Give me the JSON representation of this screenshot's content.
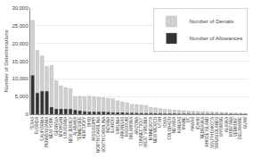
{
  "chart_data": {
    "type": "bar",
    "categories": [
      "TEXAS",
      "FLORIDA",
      "CALIFORNIA",
      "PENNSYLVANIA",
      "NEW YORK",
      "GEORGIA",
      "MICHIGAN",
      "LOUISIANA",
      "NEW JERSEY",
      "ALABAMA",
      "TENNESSEE",
      "KENTUCKY",
      "OHIO",
      "MISSISSIPPI",
      "NORTH CAROLINA",
      "SOUTH CAROLINA",
      "INDIANA",
      "ILLINOIS",
      "VIRGINIA",
      "ARKANSAS",
      "MISSOURI",
      "OKLAHOMA",
      "ARIZONA",
      "CONNECTICUT",
      "WEST VIRGINIA",
      "MINNESOTA",
      "NEW MEXICO",
      "UTAH",
      "IOWA",
      "COLORADO",
      "NEVADA",
      "KANSAS",
      "MAINE",
      "DC",
      "HAWAII",
      "IDAHO",
      "NEBRASKA",
      "RHODE ISLAND",
      "SOUTH DAKOTA",
      "VIRGIN ISLANDS",
      "WYOMING",
      "ALASKA",
      "MONTANA",
      "VERMONT",
      "DELAWARE",
      "GUAM"
    ],
    "series": [
      {
        "name": "Number of Denials",
        "color": "#d0d0d0",
        "values": [
          26500,
          18000,
          16500,
          13500,
          13800,
          9500,
          8000,
          7500,
          7200,
          5000,
          5100,
          5000,
          5100,
          4900,
          4800,
          4700,
          4500,
          4400,
          3800,
          3500,
          3200,
          2800,
          2700,
          2600,
          2500,
          2000,
          1800,
          1600,
          1400,
          1300,
          1200,
          1100,
          1000,
          900,
          850,
          800,
          750,
          700,
          650,
          600,
          500,
          450,
          400,
          350,
          300,
          250
        ]
      },
      {
        "name": "Number of Allowances",
        "color": "#333333",
        "values": [
          11000,
          6000,
          6500,
          6500,
          2000,
          1500,
          1500,
          1500,
          1500,
          1200,
          1000,
          800,
          700,
          700,
          700,
          700,
          600,
          500,
          500,
          500,
          400,
          400,
          350,
          300,
          300,
          300,
          250,
          250,
          200,
          200,
          200,
          150,
          150,
          150,
          100,
          100,
          100,
          100,
          100,
          80,
          80,
          80,
          60,
          60,
          50,
          40
        ]
      }
    ],
    "ylabel": "Number of Determinations",
    "ylim": [
      0,
      30000
    ],
    "yticks": [
      0,
      {
        "value": 5000,
        "label": "5,000"
      },
      {
        "value": 10000,
        "label": "10,000"
      },
      {
        "value": 15000,
        "label": "15,000"
      },
      {
        "value": 20000,
        "label": "20,000"
      },
      {
        "value": 25000,
        "label": "25,000"
      },
      {
        "value": 30000,
        "label": "30,000"
      }
    ],
    "stacked": false,
    "grid": true,
    "legend": "upper right"
  }
}
